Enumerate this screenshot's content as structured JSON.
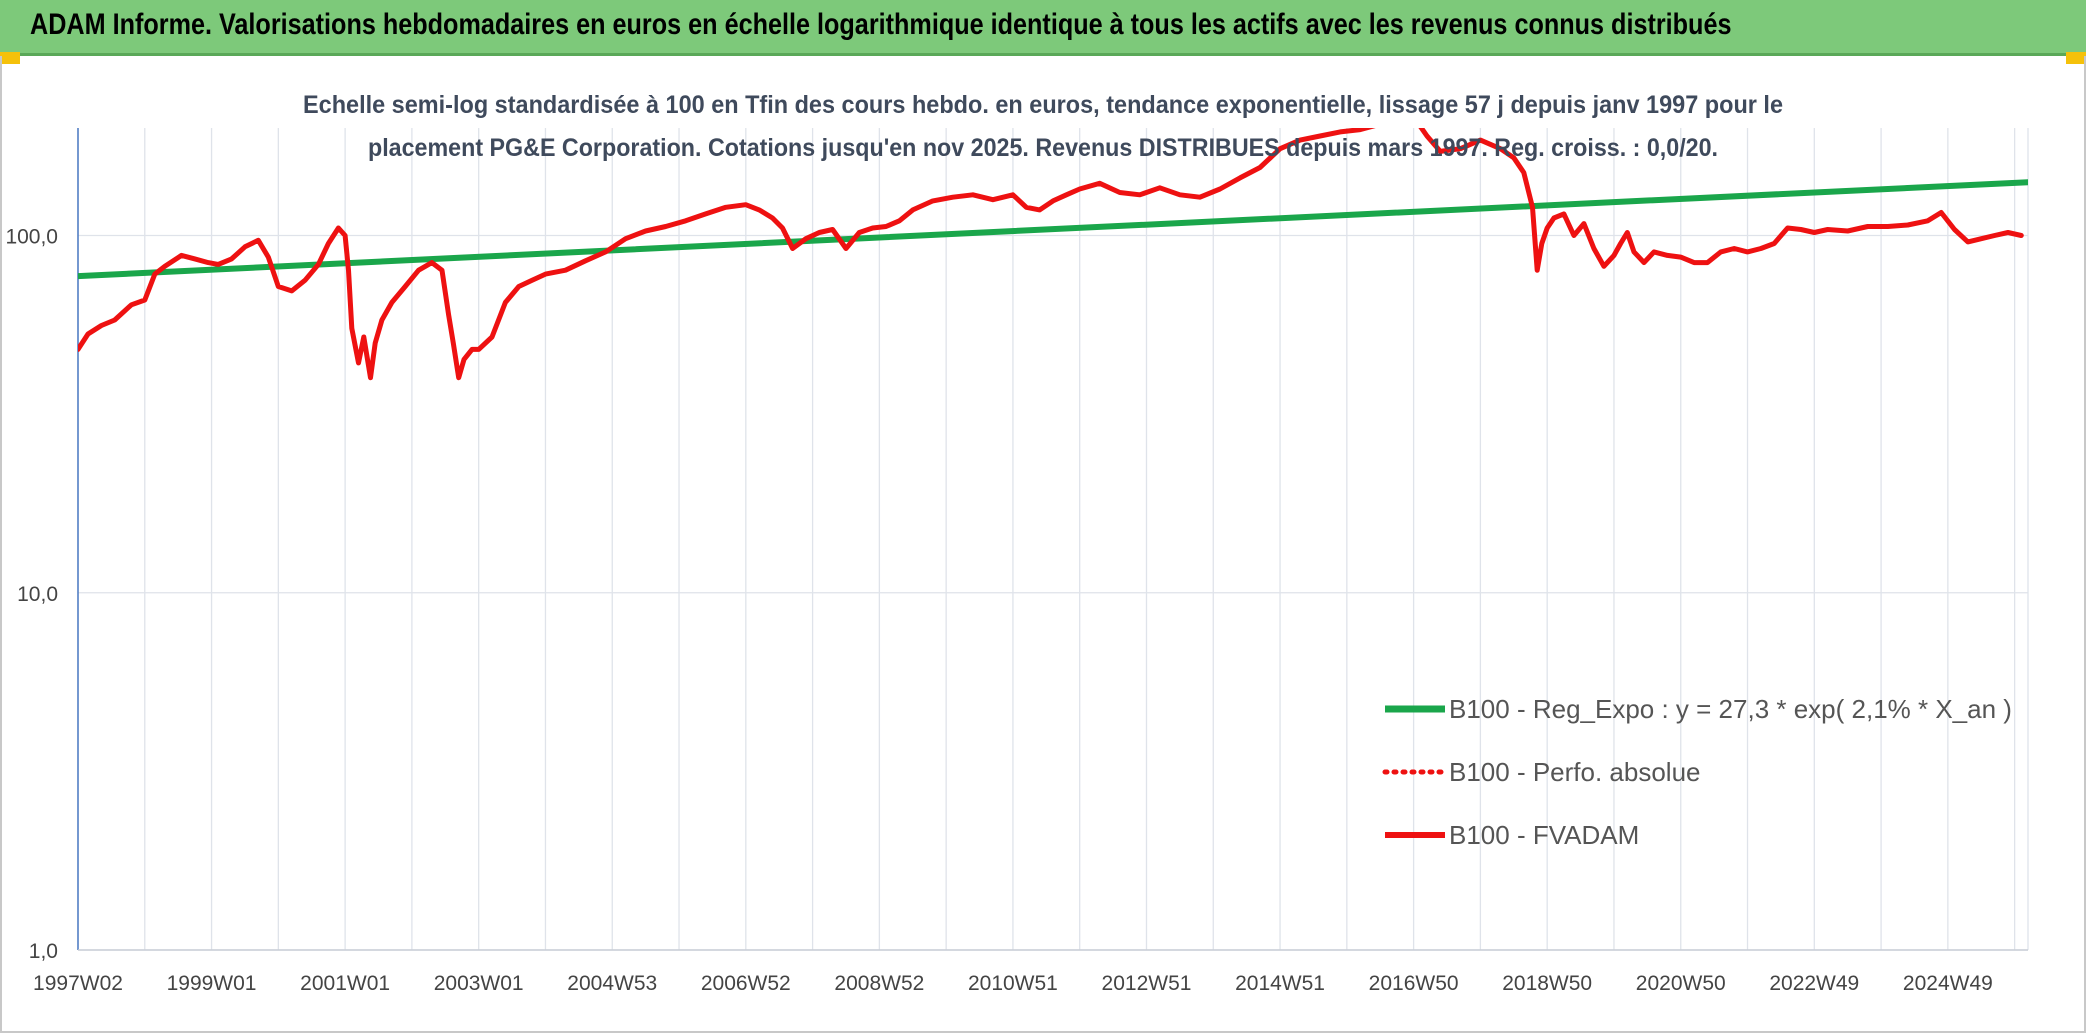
{
  "header": {
    "title": "ADAM Informe. Valorisations hebdomadaires en euros en échelle logarithmique identique à tous les actifs avec les revenus connus distribués"
  },
  "colors": {
    "banner": "#7dc97a",
    "trend": "#1aa64b",
    "fvadam": "#ee1111",
    "perfo": "#ee1111",
    "accent": "#f5c10a",
    "grid": "#dfe3ea"
  },
  "chart_data": {
    "type": "line",
    "title": "Echelle semi-log standardisée à 100 en Tfin des cours hebdo. en euros, tendance exponentielle, lissage 57 j depuis janv 1997 pour le",
    "subtitle": "placement PG&E Corporation.  Cotations jusqu'en nov 2025. Revenus DISTRIBUES depuis mars 1997. Reg. croiss. : 0,0/20.",
    "y_scale": "log",
    "ylim": [
      1,
      200
    ],
    "xlim": [
      1997.0,
      2026.2
    ],
    "y_ticks": [
      {
        "value": 1,
        "label": "1,0"
      },
      {
        "value": 10,
        "label": "10,0"
      },
      {
        "value": 100,
        "label": "100,0"
      }
    ],
    "x_ticks": [
      {
        "value": 1997.0,
        "label": "1997W02"
      },
      {
        "value": 1999.0,
        "label": "1999W01"
      },
      {
        "value": 2001.0,
        "label": "2001W01"
      },
      {
        "value": 2003.0,
        "label": "2003W01"
      },
      {
        "value": 2005.0,
        "label": "2004W53"
      },
      {
        "value": 2007.0,
        "label": "2006W52"
      },
      {
        "value": 2009.0,
        "label": "2008W52"
      },
      {
        "value": 2011.0,
        "label": "2010W51"
      },
      {
        "value": 2013.0,
        "label": "2012W51"
      },
      {
        "value": 2015.0,
        "label": "2014W51"
      },
      {
        "value": 2017.0,
        "label": "2016W50"
      },
      {
        "value": 2019.0,
        "label": "2018W50"
      },
      {
        "value": 2021.0,
        "label": "2020W50"
      },
      {
        "value": 2023.0,
        "label": "2022W49"
      },
      {
        "value": 2025.0,
        "label": "2024W49"
      }
    ],
    "grid": true,
    "legend_position": "bottom-right",
    "series": [
      {
        "name": "B100 - Reg_Expo : y = 27,3 * exp( 2,1% *  X_an )",
        "style": "solid-green",
        "x": [
          1997.0,
          2026.2
        ],
        "y": [
          77,
          141
        ]
      },
      {
        "name": "B100 - Perfo. absolue",
        "style": "dotted-red",
        "x": [],
        "y": []
      },
      {
        "name": "B100 - FVADAM",
        "style": "solid-red",
        "x": [
          1997.0,
          1997.15,
          1997.35,
          1997.55,
          1997.8,
          1998.0,
          1998.15,
          1998.3,
          1998.55,
          1998.75,
          1998.95,
          1999.1,
          1999.3,
          1999.5,
          1999.7,
          1999.85,
          2000.0,
          2000.2,
          2000.4,
          2000.6,
          2000.75,
          2000.9,
          2001.0,
          2001.05,
          2001.1,
          2001.2,
          2001.28,
          2001.38,
          2001.45,
          2001.55,
          2001.7,
          2001.9,
          2002.1,
          2002.3,
          2002.45,
          2002.55,
          2002.62,
          2002.7,
          2002.78,
          2002.9,
          2003.0,
          2003.2,
          2003.4,
          2003.6,
          2003.8,
          2004.0,
          2004.3,
          2004.6,
          2004.9,
          2005.2,
          2005.5,
          2005.8,
          2006.1,
          2006.4,
          2006.7,
          2007.0,
          2007.2,
          2007.4,
          2007.55,
          2007.7,
          2007.9,
          2008.1,
          2008.3,
          2008.5,
          2008.7,
          2008.9,
          2009.1,
          2009.3,
          2009.5,
          2009.8,
          2010.1,
          2010.4,
          2010.7,
          2011.0,
          2011.2,
          2011.4,
          2011.6,
          2011.8,
          2012.0,
          2012.3,
          2012.6,
          2012.9,
          2013.2,
          2013.5,
          2013.8,
          2014.1,
          2014.4,
          2014.7,
          2015.0,
          2015.3,
          2015.6,
          2015.9,
          2016.2,
          2016.5,
          2016.8,
          2017.0,
          2017.2,
          2017.4,
          2017.7,
          2018.0,
          2018.3,
          2018.5,
          2018.65,
          2018.78,
          2018.85,
          2018.92,
          2019.0,
          2019.1,
          2019.25,
          2019.4,
          2019.55,
          2019.7,
          2019.85,
          2020.0,
          2020.1,
          2020.2,
          2020.3,
          2020.45,
          2020.6,
          2020.8,
          2021.0,
          2021.2,
          2021.4,
          2021.6,
          2021.8,
          2022.0,
          2022.2,
          2022.4,
          2022.6,
          2022.8,
          2023.0,
          2023.2,
          2023.5,
          2023.8,
          2024.1,
          2024.4,
          2024.7,
          2024.9,
          2025.1,
          2025.3,
          2025.5,
          2025.7,
          2025.9,
          2026.1
        ],
        "y": [
          48,
          53,
          56,
          58,
          64,
          66,
          78,
          82,
          88,
          86,
          84,
          83,
          86,
          93,
          97,
          87,
          72,
          70,
          75,
          83,
          95,
          105,
          100,
          80,
          55,
          44,
          52,
          40,
          50,
          58,
          65,
          72,
          80,
          84,
          80,
          60,
          50,
          40,
          45,
          48,
          48,
          52,
          65,
          72,
          75,
          78,
          80,
          85,
          90,
          98,
          103,
          106,
          110,
          115,
          120,
          122,
          118,
          112,
          105,
          92,
          98,
          102,
          104,
          92,
          102,
          105,
          106,
          110,
          118,
          125,
          128,
          130,
          126,
          130,
          120,
          118,
          125,
          130,
          135,
          140,
          132,
          130,
          136,
          130,
          128,
          135,
          145,
          155,
          175,
          185,
          190,
          195,
          198,
          205,
          210,
          215,
          190,
          172,
          175,
          185,
          175,
          165,
          150,
          120,
          80,
          95,
          105,
          112,
          115,
          100,
          108,
          92,
          82,
          88,
          95,
          102,
          90,
          84,
          90,
          88,
          87,
          84,
          84,
          90,
          92,
          90,
          92,
          95,
          105,
          104,
          102,
          104,
          103,
          106,
          106,
          107,
          110,
          116,
          104,
          96,
          98,
          100,
          102,
          100
        ]
      }
    ]
  }
}
